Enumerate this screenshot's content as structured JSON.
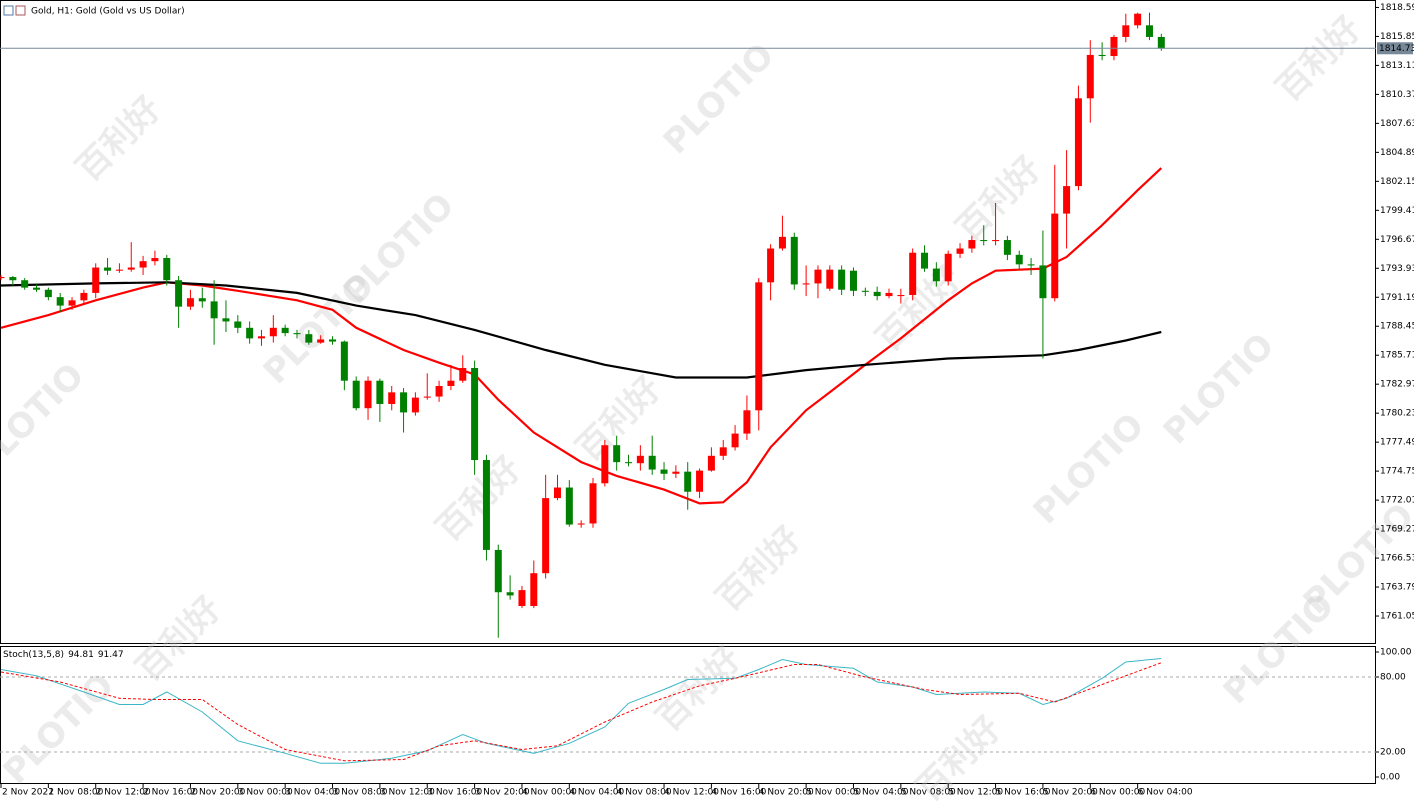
{
  "chart_data": [
    {
      "type": "candlestick",
      "title": "Gold, H1:  Gold (Gold vs US Dollar)",
      "watermarks": [
        "百利好",
        "PLOTIO"
      ],
      "categories": [
        "2 Nov 2021",
        null,
        null,
        null,
        "2 Nov 08:00",
        null,
        null,
        null,
        "2 Nov 12:00",
        null,
        null,
        null,
        "2 Nov 16:00",
        null,
        null,
        null,
        "2 Nov 20:00",
        null,
        null,
        null,
        "3 Nov 00:00",
        null,
        null,
        null,
        "3 Nov 04:00",
        null,
        null,
        null,
        "3 Nov 08:00",
        null,
        null,
        null,
        "3 Nov 12:00",
        null,
        null,
        null,
        "3 Nov 16:00",
        null,
        null,
        null,
        "3 Nov 20:00",
        null,
        null,
        null,
        "4 Nov 00:00",
        null,
        null,
        null,
        "4 Nov 04:00",
        null,
        null,
        null,
        "4 Nov 08:00",
        null,
        null,
        null,
        "4 Nov 12:00",
        null,
        null,
        null,
        "4 Nov 16:00",
        null,
        null,
        null,
        "4 Nov 20:00",
        null,
        null,
        null,
        "5 Nov 00:00",
        null,
        null,
        null,
        "5 Nov 04:00",
        null,
        null,
        null,
        "5 Nov 08:00",
        null,
        null,
        null,
        "5 Nov 12:00",
        null,
        null,
        null,
        "5 Nov 16:00",
        null,
        null,
        null,
        "5 Nov 20:00",
        null,
        null,
        null,
        "6 Nov 00:00",
        null,
        null,
        null,
        "6 Nov 04:00",
        null,
        null
      ],
      "open": [
        1793.0,
        1793.1,
        1792.8,
        1792.1,
        1791.9,
        1791.2,
        1790.4,
        1790.9,
        1791.6,
        1794.0,
        1793.7,
        1793.8,
        1794.0,
        1794.6,
        1794.9,
        1792.8,
        1790.3,
        1791.1,
        1790.8,
        1789.2,
        1788.9,
        1788.3,
        1787.3,
        1787.5,
        1788.3,
        1787.8,
        1787.7,
        1786.9,
        1787.2,
        1787.0,
        1783.3,
        1780.7,
        1783.3,
        1781.1,
        1782.2,
        1780.3,
        1781.7,
        1781.8,
        1782.8,
        1783.3,
        1784.5,
        1775.8,
        1767.3,
        1763.3,
        1762.0,
        1762.0,
        1765.1,
        1772.2,
        1773.2,
        1769.7,
        1769.8,
        1773.6,
        1777.2,
        1775.6,
        1775.5,
        1776.2,
        1774.9,
        1774.5,
        1774.7,
        1772.8,
        1774.8,
        1776.2,
        1777.0,
        1778.3,
        1780.5,
        1792.6,
        1795.8,
        1796.9,
        1792.4,
        1792.5,
        1792.0,
        1793.8,
        1793.7,
        1791.8,
        1791.7,
        1791.3,
        1791.3,
        1791.4,
        1795.4,
        1793.9,
        1792.7,
        1795.3,
        1795.8,
        1796.6,
        1796.5,
        1796.6,
        1795.2,
        1794.3,
        1794.2,
        1791.1,
        1799.1,
        1801.7,
        1810.0,
        1814.1,
        1814.0,
        1815.8,
        1816.9,
        1816.9,
        1815.8
      ],
      "high": [
        1793.3,
        1793.2,
        1793.0,
        1792.4,
        1792.1,
        1791.6,
        1791.2,
        1791.9,
        1794.4,
        1794.9,
        1794.4,
        1796.4,
        1795.1,
        1795.6,
        1795.2,
        1793.2,
        1791.9,
        1792.1,
        1792.8,
        1790.9,
        1789.5,
        1788.9,
        1788.1,
        1789.5,
        1788.6,
        1788.1,
        1788.1,
        1787.6,
        1787.5,
        1787.1,
        1783.7,
        1783.7,
        1783.5,
        1782.8,
        1782.6,
        1782.2,
        1784.0,
        1783.3,
        1784.8,
        1785.7,
        1785.2,
        1776.3,
        1767.8,
        1764.9,
        1763.9,
        1766.3,
        1774.4,
        1774.4,
        1773.9,
        1770.1,
        1774.1,
        1777.7,
        1778.1,
        1776.3,
        1777.2,
        1778.1,
        1775.6,
        1775.3,
        1775.6,
        1775.0,
        1777.0,
        1777.7,
        1779.1,
        1781.9,
        1793.0,
        1796.2,
        1798.9,
        1797.3,
        1794.2,
        1794.2,
        1794.2,
        1794.2,
        1794.0,
        1792.1,
        1792.2,
        1792.0,
        1792.0,
        1795.8,
        1796.1,
        1794.5,
        1795.6,
        1796.3,
        1797.0,
        1798.0,
        1800.1,
        1797.0,
        1795.6,
        1794.9,
        1797.5,
        1803.7,
        1805.1,
        1811.2,
        1815.5,
        1815.3,
        1816.0,
        1818.0,
        1818.1,
        1818.1,
        1816.1
      ],
      "low": [
        1792.8,
        1792.3,
        1791.9,
        1791.7,
        1790.9,
        1789.8,
        1790.0,
        1790.6,
        1791.1,
        1793.3,
        1793.5,
        1793.6,
        1793.3,
        1794.2,
        1792.3,
        1788.3,
        1790.0,
        1790.2,
        1786.7,
        1787.9,
        1787.8,
        1786.8,
        1786.6,
        1786.9,
        1787.5,
        1787.3,
        1786.7,
        1786.8,
        1786.7,
        1782.4,
        1780.5,
        1779.6,
        1779.4,
        1780.5,
        1778.4,
        1780.0,
        1781.5,
        1781.3,
        1782.4,
        1783.1,
        1774.4,
        1766.3,
        1759.0,
        1762.6,
        1761.8,
        1761.8,
        1764.6,
        1772.0,
        1769.5,
        1769.4,
        1769.4,
        1773.3,
        1774.8,
        1775.2,
        1774.8,
        1774.4,
        1773.9,
        1774.1,
        1771.1,
        1772.2,
        1774.7,
        1775.8,
        1776.7,
        1777.7,
        1778.6,
        1790.9,
        1795.6,
        1791.9,
        1791.3,
        1791.1,
        1791.8,
        1791.4,
        1791.3,
        1791.3,
        1790.9,
        1791.1,
        1790.6,
        1790.9,
        1793.6,
        1792.2,
        1792.3,
        1794.9,
        1795.4,
        1796.1,
        1796.1,
        1794.7,
        1793.8,
        1793.3,
        1785.4,
        1790.8,
        1795.8,
        1801.3,
        1807.7,
        1813.6,
        1813.6,
        1815.3,
        1816.6,
        1815.5,
        1814.5
      ],
      "close": [
        1793.1,
        1792.8,
        1792.1,
        1791.9,
        1791.2,
        1790.4,
        1790.9,
        1791.6,
        1794.0,
        1793.7,
        1793.8,
        1794.0,
        1794.6,
        1794.9,
        1792.8,
        1790.3,
        1791.1,
        1790.8,
        1789.2,
        1788.9,
        1788.3,
        1787.3,
        1787.5,
        1788.3,
        1787.8,
        1787.7,
        1786.9,
        1787.2,
        1787.0,
        1783.3,
        1780.7,
        1783.3,
        1781.1,
        1782.2,
        1780.3,
        1781.7,
        1781.8,
        1782.8,
        1783.3,
        1784.5,
        1775.8,
        1767.3,
        1763.3,
        1763.0,
        1763.5,
        1765.1,
        1772.2,
        1773.2,
        1769.7,
        1769.8,
        1773.6,
        1777.2,
        1775.6,
        1775.5,
        1776.2,
        1774.9,
        1774.5,
        1774.7,
        1772.8,
        1774.8,
        1776.2,
        1777.0,
        1778.3,
        1780.5,
        1792.6,
        1795.8,
        1796.9,
        1792.4,
        1792.5,
        1793.8,
        1793.8,
        1791.9,
        1791.8,
        1791.7,
        1791.3,
        1791.6,
        1791.4,
        1795.4,
        1793.9,
        1792.7,
        1795.3,
        1795.8,
        1796.6,
        1796.5,
        1796.6,
        1795.2,
        1794.3,
        1794.2,
        1791.1,
        1799.1,
        1801.7,
        1810.0,
        1814.1,
        1814.0,
        1815.8,
        1816.9,
        1818.0,
        1815.8,
        1814.7
      ],
      "up_color": "#ff0000",
      "down_color": "#008000",
      "overlays": [
        {
          "color": "#ff0000",
          "x": [
            0,
            4,
            8,
            12,
            14,
            17,
            20,
            25,
            28,
            30,
            34,
            37,
            40,
            42,
            45,
            49,
            52,
            56,
            59,
            61,
            63,
            65,
            68,
            70,
            73,
            76,
            80,
            82,
            84,
            88,
            90,
            93,
            96,
            98
          ],
          "values": [
            1788.3,
            1789.5,
            1790.9,
            1792.1,
            1792.6,
            1792.3,
            1791.8,
            1790.9,
            1790.0,
            1788.3,
            1786.2,
            1785.0,
            1783.9,
            1781.5,
            1778.4,
            1775.6,
            1774.3,
            1773.0,
            1771.7,
            1771.8,
            1773.7,
            1777.0,
            1780.5,
            1782.2,
            1784.8,
            1787.3,
            1790.9,
            1792.5,
            1793.7,
            1793.9,
            1795.0,
            1798.0,
            1801.3,
            1803.4
          ]
        },
        {
          "color": "#000000",
          "x": [
            0,
            8,
            14,
            19,
            25,
            30,
            35,
            40,
            46,
            51,
            57,
            63,
            68,
            73,
            80,
            88,
            91,
            95,
            98
          ],
          "values": [
            1792.3,
            1792.5,
            1792.6,
            1792.3,
            1791.6,
            1790.4,
            1789.5,
            1788.1,
            1786.2,
            1784.8,
            1783.6,
            1783.6,
            1784.3,
            1784.8,
            1785.4,
            1785.7,
            1786.2,
            1787.1,
            1787.9
          ]
        }
      ],
      "last_price": 1814.73,
      "ylim": [
        1758.5,
        1819.2
      ],
      "yticks": [
        1818.59,
        1815.85,
        1813.11,
        1810.37,
        1807.63,
        1804.89,
        1802.15,
        1799.41,
        1796.67,
        1793.93,
        1791.19,
        1788.45,
        1785.71,
        1782.97,
        1780.23,
        1777.49,
        1774.75,
        1772.01,
        1769.27,
        1766.53,
        1763.79,
        1761.05
      ]
    },
    {
      "type": "line",
      "title": "Stoch(13,5,8)",
      "series": [
        {
          "color": "#3bb6c6",
          "dashed": false,
          "x": [
            0,
            3,
            7,
            10,
            12,
            14,
            17,
            20,
            24,
            27,
            29,
            33,
            36,
            39,
            41,
            45,
            48,
            51,
            53,
            56,
            58,
            62,
            64,
            66,
            68,
            72,
            74,
            77,
            79,
            83,
            86,
            88,
            90,
            93,
            95,
            98
          ],
          "values": [
            86,
            81,
            68,
            58,
            58,
            68,
            52,
            29,
            19,
            11,
            11,
            15,
            21,
            34,
            27,
            19,
            27,
            40,
            59,
            70,
            78,
            79,
            86,
            94,
            90,
            87,
            76,
            72,
            66,
            68,
            67,
            58,
            63,
            79,
            92,
            94.81
          ]
        },
        {
          "color": "#ff0000",
          "dashed": true,
          "x": [
            0,
            5,
            10,
            13,
            17,
            20,
            24,
            29,
            34,
            37,
            40,
            44,
            47,
            51,
            55,
            59,
            62,
            67,
            69,
            73,
            78,
            81,
            86,
            89,
            93,
            98
          ],
          "values": [
            84,
            76,
            63,
            62,
            62,
            42,
            22,
            13,
            14,
            25,
            29,
            22,
            25,
            44,
            60,
            73,
            79,
            90,
            90,
            80,
            70,
            66,
            67,
            60,
            74,
            91.47
          ]
        }
      ],
      "levels": [
        80,
        20
      ],
      "ylim": [
        -5.6,
        104
      ],
      "yticks": [
        {
          "value": 100,
          "label": "100.00"
        },
        {
          "value": 80,
          "label": "80.00"
        },
        {
          "value": 20,
          "label": "20.00"
        },
        {
          "value": 0,
          "label": "0.00"
        }
      ]
    }
  ]
}
